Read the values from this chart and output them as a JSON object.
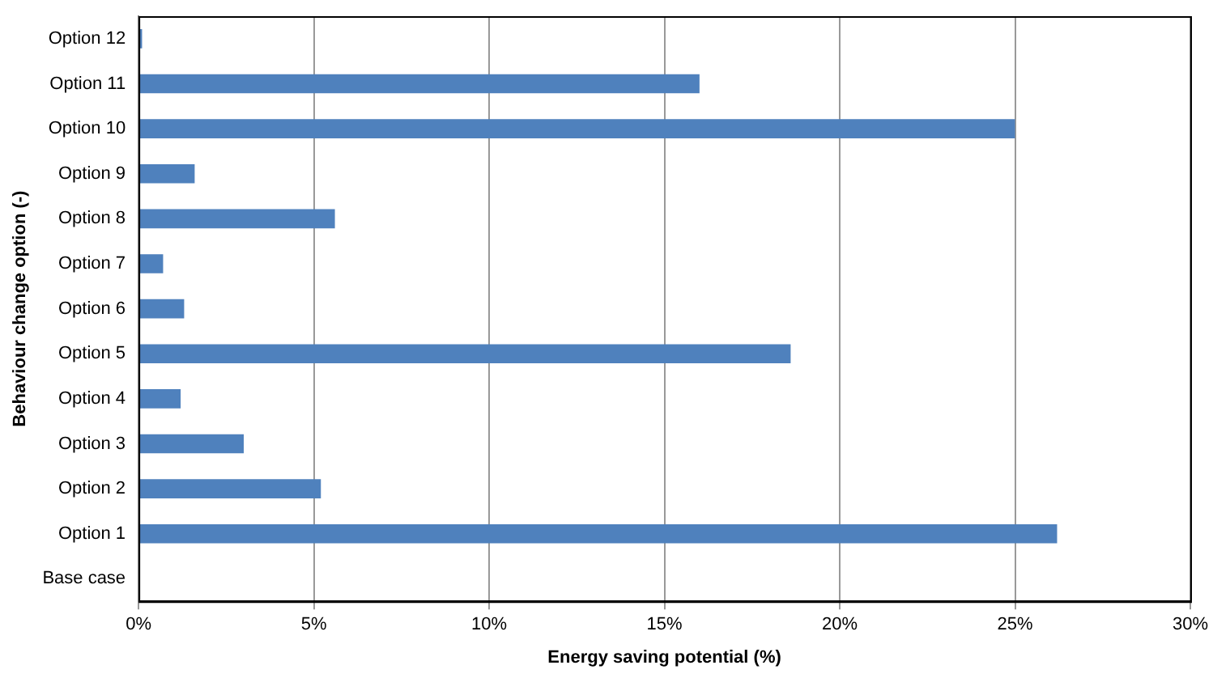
{
  "chart_data": {
    "type": "bar",
    "orientation": "horizontal",
    "xlabel": "Energy saving potential (%)",
    "ylabel": "Behaviour change option (-)",
    "categories": [
      "Option 12",
      "Option 11",
      "Option 10",
      "Option 9",
      "Option 8",
      "Option 7",
      "Option 6",
      "Option 5",
      "Option 4",
      "Option 3",
      "Option 2",
      "Option 1",
      "Base case"
    ],
    "values": [
      0.1,
      16.0,
      25.0,
      1.6,
      5.6,
      0.7,
      1.3,
      18.6,
      1.2,
      3.0,
      5.2,
      26.2,
      0
    ],
    "color": "#4f81bd",
    "xlim": [
      0,
      30
    ],
    "xticks": [
      {
        "value": 0,
        "label": "0%"
      },
      {
        "value": 5,
        "label": "5%"
      },
      {
        "value": 10,
        "label": "10%"
      },
      {
        "value": 15,
        "label": "15%"
      },
      {
        "value": 20,
        "label": "20%"
      },
      {
        "value": 25,
        "label": "25%"
      },
      {
        "value": 30,
        "label": "30%"
      }
    ],
    "grid": "x",
    "legend": false
  }
}
